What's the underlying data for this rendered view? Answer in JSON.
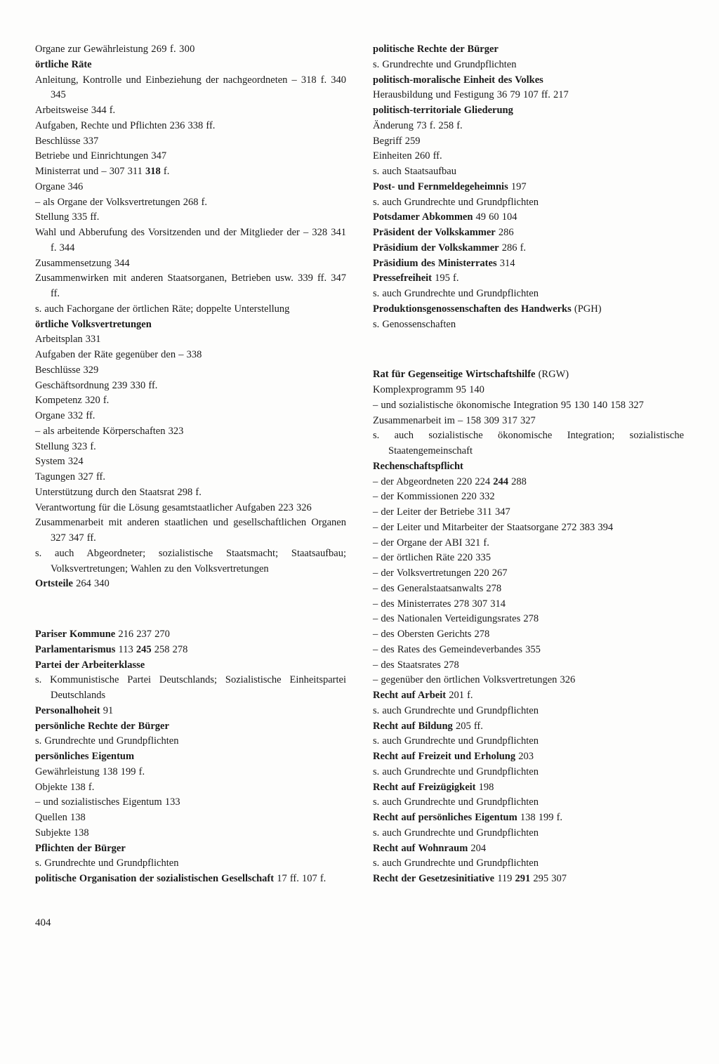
{
  "page_number": "404",
  "left_column": [
    {
      "type": "line",
      "runs": [
        {
          "t": "Organe zur Gewährleistung"
        },
        {
          "t": "  269 f. 300",
          "cls": "pages"
        }
      ]
    },
    {
      "type": "line",
      "runs": [
        {
          "t": "örtliche Räte",
          "b": true
        }
      ]
    },
    {
      "type": "line",
      "runs": [
        {
          "t": "Anleitung, Kontrolle und Einbeziehung der nachgeordneten –   318 f. 340 345"
        }
      ]
    },
    {
      "type": "line",
      "runs": [
        {
          "t": "Arbeitsweise   344 f."
        }
      ]
    },
    {
      "type": "line",
      "runs": [
        {
          "t": "Aufgaben, Rechte und Pflichten   236 338 ff."
        }
      ]
    },
    {
      "type": "line",
      "runs": [
        {
          "t": "Beschlüsse   337"
        }
      ]
    },
    {
      "type": "line",
      "runs": [
        {
          "t": "Betriebe und Einrichtungen   347"
        }
      ]
    },
    {
      "type": "line",
      "runs": [
        {
          "t": "Ministerrat und –   307 311 "
        },
        {
          "t": "318",
          "b": true
        },
        {
          "t": " f."
        }
      ]
    },
    {
      "type": "line",
      "runs": [
        {
          "t": "Organe   346"
        }
      ]
    },
    {
      "type": "line",
      "runs": [
        {
          "t": "– als Organe der Volksvertretungen   268 f."
        }
      ]
    },
    {
      "type": "line",
      "runs": [
        {
          "t": "Stellung   335 ff."
        }
      ]
    },
    {
      "type": "line",
      "runs": [
        {
          "t": "Wahl und Abberufung des Vorsitzenden und der Mitglieder der –   328 341 f. 344"
        }
      ]
    },
    {
      "type": "line",
      "runs": [
        {
          "t": "Zusammensetzung   344"
        }
      ]
    },
    {
      "type": "line",
      "runs": [
        {
          "t": "Zusammenwirken mit anderen Staatsorganen, Betrieben usw.   339 ff. 347 ff."
        }
      ]
    },
    {
      "type": "line",
      "runs": [
        {
          "t": "s. auch Fachorgane der örtlichen Räte; doppelte Unterstellung"
        }
      ]
    },
    {
      "type": "line",
      "runs": [
        {
          "t": "örtliche Volksvertretungen",
          "b": true
        }
      ]
    },
    {
      "type": "line",
      "runs": [
        {
          "t": "Arbeitsplan   331"
        }
      ]
    },
    {
      "type": "line",
      "runs": [
        {
          "t": "Aufgaben der Räte gegenüber den –   338"
        }
      ]
    },
    {
      "type": "line",
      "runs": [
        {
          "t": "Beschlüsse   329"
        }
      ]
    },
    {
      "type": "line",
      "runs": [
        {
          "t": "Geschäftsordnung   239 330 ff."
        }
      ]
    },
    {
      "type": "line",
      "runs": [
        {
          "t": "Kompetenz   320 f."
        }
      ]
    },
    {
      "type": "line",
      "runs": [
        {
          "t": "Organe   332 ff."
        }
      ]
    },
    {
      "type": "line",
      "runs": [
        {
          "t": "– als arbeitende Körperschaften   323"
        }
      ]
    },
    {
      "type": "line",
      "runs": [
        {
          "t": "Stellung   323 f."
        }
      ]
    },
    {
      "type": "line",
      "runs": [
        {
          "t": "System   324"
        }
      ]
    },
    {
      "type": "line",
      "runs": [
        {
          "t": "Tagungen   327 ff."
        }
      ]
    },
    {
      "type": "line",
      "runs": [
        {
          "t": "Unterstützung durch den Staatsrat   298 f."
        }
      ]
    },
    {
      "type": "line",
      "runs": [
        {
          "t": "Verantwortung für die Lösung gesamtstaatlicher Aufgaben   223 326"
        }
      ]
    },
    {
      "type": "line",
      "runs": [
        {
          "t": "Zusammenarbeit mit anderen staatlichen und gesellschaftlichen Organen   327 347 ff."
        }
      ]
    },
    {
      "type": "line",
      "runs": [
        {
          "t": "s. auch Abgeordneter; sozialistische Staatsmacht; Staatsaufbau; Volksvertretungen; Wahlen zu den Volksvertretungen"
        }
      ]
    },
    {
      "type": "line",
      "runs": [
        {
          "t": "Ortsteile",
          "b": true
        },
        {
          "t": "   264 340"
        }
      ]
    },
    {
      "type": "big-gap"
    },
    {
      "type": "line",
      "runs": [
        {
          "t": "Pariser Kommune",
          "b": true
        },
        {
          "t": "   216 237 270"
        }
      ]
    },
    {
      "type": "line",
      "runs": [
        {
          "t": "Parlamentarismus",
          "b": true
        },
        {
          "t": "   113 "
        },
        {
          "t": "245",
          "b": true
        },
        {
          "t": " 258 278"
        }
      ]
    },
    {
      "type": "line",
      "runs": [
        {
          "t": "Partei der Arbeiterklasse",
          "b": true
        }
      ]
    },
    {
      "type": "line",
      "runs": [
        {
          "t": "s. Kommunistische Partei Deutschlands; Sozialistische Einheitspartei Deutschlands"
        }
      ]
    },
    {
      "type": "line",
      "runs": [
        {
          "t": "Personalhoheit",
          "b": true
        },
        {
          "t": "   91"
        }
      ]
    },
    {
      "type": "line",
      "runs": [
        {
          "t": "persönliche Rechte der Bürger",
          "b": true
        }
      ]
    },
    {
      "type": "line",
      "runs": [
        {
          "t": "s. Grundrechte und Grundpflichten"
        }
      ]
    },
    {
      "type": "line",
      "runs": [
        {
          "t": "persönliches Eigentum",
          "b": true
        }
      ]
    },
    {
      "type": "line",
      "runs": [
        {
          "t": "Gewährleistung   138 199 f."
        }
      ]
    },
    {
      "type": "line",
      "runs": [
        {
          "t": "Objekte   138 f."
        }
      ]
    },
    {
      "type": "line",
      "runs": [
        {
          "t": "– und sozialistisches Eigentum   133"
        }
      ]
    },
    {
      "type": "line",
      "runs": [
        {
          "t": "Quellen   138"
        }
      ]
    },
    {
      "type": "line",
      "runs": [
        {
          "t": "Subjekte   138"
        }
      ]
    },
    {
      "type": "line",
      "runs": [
        {
          "t": "Pflichten der Bürger",
          "b": true
        }
      ]
    },
    {
      "type": "line",
      "runs": [
        {
          "t": "s. Grundrechte und Grundpflichten"
        }
      ]
    },
    {
      "type": "line",
      "runs": [
        {
          "t": "politische Organisation der sozialistischen Gesellschaft",
          "b": true
        },
        {
          "t": "   17 ff. 107 f."
        }
      ]
    }
  ],
  "right_column": [
    {
      "type": "line",
      "runs": [
        {
          "t": "politische Rechte der Bürger",
          "b": true
        }
      ]
    },
    {
      "type": "line",
      "runs": [
        {
          "t": "s. Grundrechte und Grundpflichten"
        }
      ]
    },
    {
      "type": "line",
      "runs": [
        {
          "t": "politisch-moralische Einheit des Volkes",
          "b": true
        }
      ]
    },
    {
      "type": "line",
      "runs": [
        {
          "t": "Herausbildung und Festigung   36 79 107 ff. 217"
        }
      ]
    },
    {
      "type": "line",
      "runs": [
        {
          "t": "politisch-territoriale Gliederung",
          "b": true
        }
      ]
    },
    {
      "type": "line",
      "runs": [
        {
          "t": "Änderung   73 f. 258 f."
        }
      ]
    },
    {
      "type": "line",
      "runs": [
        {
          "t": "Begriff   259"
        }
      ]
    },
    {
      "type": "line",
      "runs": [
        {
          "t": "Einheiten   260 ff."
        }
      ]
    },
    {
      "type": "line",
      "runs": [
        {
          "t": "s. auch Staatsaufbau"
        }
      ]
    },
    {
      "type": "line",
      "runs": [
        {
          "t": "Post- und Fernmeldegeheimnis",
          "b": true
        },
        {
          "t": "   197"
        }
      ]
    },
    {
      "type": "line",
      "runs": [
        {
          "t": "s. auch Grundrechte und Grundpflichten"
        }
      ]
    },
    {
      "type": "line",
      "runs": [
        {
          "t": "Potsdamer Abkommen",
          "b": true
        },
        {
          "t": "   49 60 104"
        }
      ]
    },
    {
      "type": "line",
      "runs": [
        {
          "t": "Präsident der Volkskammer",
          "b": true
        },
        {
          "t": "   286"
        }
      ]
    },
    {
      "type": "line",
      "runs": [
        {
          "t": "Präsidium der Volkskammer",
          "b": true
        },
        {
          "t": "   286 f."
        }
      ]
    },
    {
      "type": "line",
      "runs": [
        {
          "t": "Präsidium des Ministerrates",
          "b": true
        },
        {
          "t": "   314"
        }
      ]
    },
    {
      "type": "line",
      "runs": [
        {
          "t": "Pressefreiheit",
          "b": true
        },
        {
          "t": "   195 f."
        }
      ]
    },
    {
      "type": "line",
      "runs": [
        {
          "t": "s. auch Grundrechte und Grundpflichten"
        }
      ]
    },
    {
      "type": "line",
      "runs": [
        {
          "t": "Produktionsgenossenschaften des Handwerks",
          "b": true
        },
        {
          "t": " (PGH)"
        }
      ]
    },
    {
      "type": "line",
      "runs": [
        {
          "t": "s. Genossenschaften"
        }
      ]
    },
    {
      "type": "big-gap"
    },
    {
      "type": "line",
      "runs": [
        {
          "t": "Rat für Gegenseitige Wirtschaftshilfe",
          "b": true
        },
        {
          "t": " (RGW)"
        }
      ]
    },
    {
      "type": "line",
      "runs": [
        {
          "t": "Komplexprogramm   95 140"
        }
      ]
    },
    {
      "type": "line",
      "runs": [
        {
          "t": "– und sozialistische ökonomische Integration   95 130 140 158 327"
        }
      ]
    },
    {
      "type": "line",
      "runs": [
        {
          "t": "Zusammenarbeit im –   158 309 317 327"
        }
      ]
    },
    {
      "type": "line",
      "runs": [
        {
          "t": "s. auch sozialistische ökonomische Integration; sozialistische Staatengemeinschaft"
        }
      ]
    },
    {
      "type": "line",
      "runs": [
        {
          "t": "Rechenschaftspflicht",
          "b": true
        }
      ]
    },
    {
      "type": "line",
      "runs": [
        {
          "t": "– der Abgeordneten   220 224 "
        },
        {
          "t": "244",
          "b": true
        },
        {
          "t": " 288"
        }
      ]
    },
    {
      "type": "line",
      "runs": [
        {
          "t": "– der Kommissionen   220 332"
        }
      ]
    },
    {
      "type": "line",
      "runs": [
        {
          "t": "– der Leiter der Betriebe   311 347"
        }
      ]
    },
    {
      "type": "line",
      "runs": [
        {
          "t": "– der Leiter und Mitarbeiter der Staatsorgane   272 383 394"
        }
      ]
    },
    {
      "type": "line",
      "runs": [
        {
          "t": "– der Organe der ABI   321 f."
        }
      ]
    },
    {
      "type": "line",
      "runs": [
        {
          "t": "– der örtlichen Räte   220 335"
        }
      ]
    },
    {
      "type": "line",
      "runs": [
        {
          "t": "– der Volksvertretungen   220 267"
        }
      ]
    },
    {
      "type": "line",
      "runs": [
        {
          "t": "– des Generalstaatsanwalts   278"
        }
      ]
    },
    {
      "type": "line",
      "runs": [
        {
          "t": "– des Ministerrates   278 307 314"
        }
      ]
    },
    {
      "type": "line",
      "runs": [
        {
          "t": "– des Nationalen Verteidigungsrates   278"
        }
      ]
    },
    {
      "type": "line",
      "runs": [
        {
          "t": "– des Obersten Gerichts   278"
        }
      ]
    },
    {
      "type": "line",
      "runs": [
        {
          "t": "– des Rates des Gemeindeverbandes   355"
        }
      ]
    },
    {
      "type": "line",
      "runs": [
        {
          "t": "– des Staatsrates   278"
        }
      ]
    },
    {
      "type": "line",
      "runs": [
        {
          "t": "– gegenüber den örtlichen Volksvertretungen   326"
        }
      ]
    },
    {
      "type": "line",
      "runs": [
        {
          "t": "Recht auf Arbeit",
          "b": true
        },
        {
          "t": "   201 f."
        }
      ]
    },
    {
      "type": "line",
      "runs": [
        {
          "t": "s. auch Grundrechte und Grundpflichten"
        }
      ]
    },
    {
      "type": "line",
      "runs": [
        {
          "t": "Recht auf Bildung",
          "b": true
        },
        {
          "t": "   205 ff."
        }
      ]
    },
    {
      "type": "line",
      "runs": [
        {
          "t": "s. auch Grundrechte und Grundpflichten"
        }
      ]
    },
    {
      "type": "line",
      "runs": [
        {
          "t": "Recht auf Freizeit und Erholung",
          "b": true
        },
        {
          "t": "   203"
        }
      ]
    },
    {
      "type": "line",
      "runs": [
        {
          "t": "s. auch Grundrechte und Grundpflichten"
        }
      ]
    },
    {
      "type": "line",
      "runs": [
        {
          "t": "Recht auf Freizügigkeit",
          "b": true
        },
        {
          "t": "   198"
        }
      ]
    },
    {
      "type": "line",
      "runs": [
        {
          "t": "s. auch Grundrechte und Grundpflichten"
        }
      ]
    },
    {
      "type": "line",
      "runs": [
        {
          "t": "Recht auf persönliches Eigentum",
          "b": true
        },
        {
          "t": "   138 199 f."
        }
      ]
    },
    {
      "type": "line",
      "runs": [
        {
          "t": "s. auch Grundrechte und Grundpflichten"
        }
      ]
    },
    {
      "type": "line",
      "runs": [
        {
          "t": "Recht auf Wohnraum",
          "b": true
        },
        {
          "t": "   204"
        }
      ]
    },
    {
      "type": "line",
      "runs": [
        {
          "t": "s. auch Grundrechte und Grundpflichten"
        }
      ]
    },
    {
      "type": "line",
      "runs": [
        {
          "t": "Recht der Gesetzesinitiative",
          "b": true
        },
        {
          "t": "   119 "
        },
        {
          "t": "291",
          "b": true
        },
        {
          "t": " 295 307"
        }
      ]
    }
  ]
}
